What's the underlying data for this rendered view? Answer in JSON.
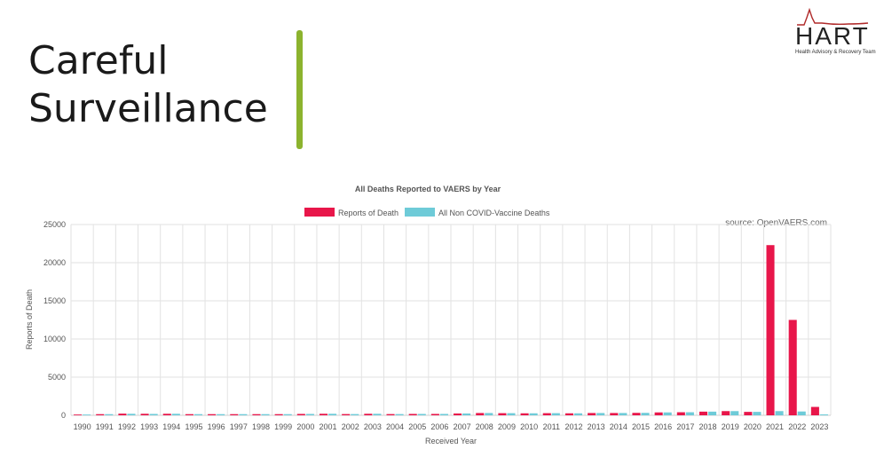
{
  "slide": {
    "title_line1": "Careful",
    "title_line2": "Surveillance",
    "accent_color": "#8cb32e"
  },
  "logo": {
    "name": "HART",
    "subtitle": "Health Advisory & Recovery Team",
    "color": "#b02a2a"
  },
  "chart_data": {
    "type": "bar",
    "title": "All Deaths Reported to VAERS by Year",
    "source_note": "source: OpenVAERS.com",
    "xlabel": "Received Year",
    "ylabel": "Reports of Death",
    "ylim": [
      0,
      25000
    ],
    "yticks": [
      0,
      5000,
      10000,
      15000,
      20000,
      25000
    ],
    "grid": true,
    "legend_position": "top-center",
    "categories": [
      "1990",
      "1991",
      "1992",
      "1993",
      "1994",
      "1995",
      "1996",
      "1997",
      "1998",
      "1999",
      "2000",
      "2001",
      "2002",
      "2003",
      "2004",
      "2005",
      "2006",
      "2007",
      "2008",
      "2009",
      "2010",
      "2011",
      "2012",
      "2013",
      "2014",
      "2015",
      "2016",
      "2017",
      "2018",
      "2019",
      "2020",
      "2021",
      "2022",
      "2023"
    ],
    "series": [
      {
        "name": "Reports of Death",
        "color": "#e8164a",
        "values": [
          100,
          150,
          220,
          200,
          200,
          150,
          150,
          150,
          150,
          150,
          180,
          200,
          160,
          200,
          160,
          180,
          180,
          240,
          300,
          280,
          260,
          280,
          260,
          300,
          300,
          320,
          380,
          400,
          480,
          550,
          450,
          22300,
          12500,
          1100
        ]
      },
      {
        "name": "All Non COVID-Vaccine Deaths",
        "color": "#6ecbd8",
        "values": [
          100,
          150,
          200,
          180,
          200,
          150,
          150,
          150,
          150,
          150,
          180,
          200,
          160,
          200,
          160,
          180,
          180,
          240,
          300,
          280,
          260,
          280,
          260,
          300,
          300,
          320,
          380,
          400,
          480,
          550,
          450,
          550,
          500,
          120
        ]
      }
    ]
  }
}
